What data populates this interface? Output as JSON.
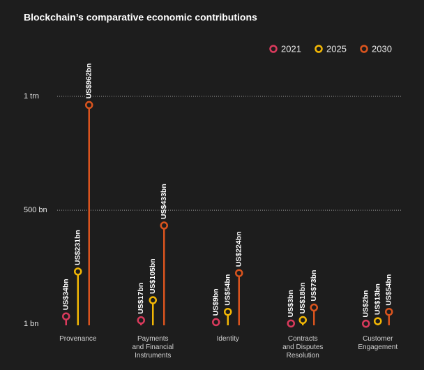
{
  "chart_data": {
    "type": "lollipop",
    "title": "Blockchain’s comparative economic contributions",
    "categories": [
      "Provenance",
      "Payments\nand Financial\nInstruments",
      "Identity",
      "Contracts\nand Disputes\nResolution",
      "Customer\nEngagement"
    ],
    "series": [
      {
        "name": "2021",
        "color": "#d93a5c",
        "values": [
          34,
          17,
          9,
          3,
          2
        ],
        "value_labels": [
          "US$34bn",
          "US$17bn",
          "US$9bn",
          "US$3bn",
          "US$2bn"
        ]
      },
      {
        "name": "2025",
        "color": "#f2b705",
        "values": [
          231,
          105,
          54,
          18,
          13
        ],
        "value_labels": [
          "US$231bn",
          "US$105bn",
          "US$54bn",
          "US$18bn",
          "US$13bn"
        ]
      },
      {
        "name": "2030",
        "color": "#d9541e",
        "values": [
          962,
          433,
          224,
          73,
          54
        ],
        "value_labels": [
          "US$962bn",
          "US$433bn",
          "US$224bn",
          "US$73bn",
          "US$54bn"
        ]
      }
    ],
    "ylim": [
      1,
      1000
    ],
    "yticks": [
      {
        "value": 1,
        "label": "1 bn"
      },
      {
        "value": 500,
        "label": "500 bn"
      },
      {
        "value": 1000,
        "label": "1 trn"
      }
    ],
    "grid": true,
    "legend": "top-right"
  }
}
